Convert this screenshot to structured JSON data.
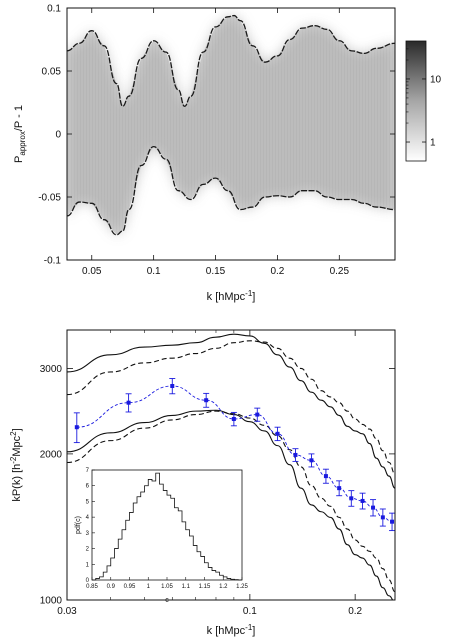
{
  "chart_data": [
    {
      "type": "heatmap",
      "xlabel": "k [hMpc",
      "xlabel_sup": "-1",
      "xlabel_end": "]",
      "ylabel": "P",
      "ylabel_sub": "approx",
      "ylabel_end": "/P - 1",
      "xlim": [
        0.03,
        0.295
      ],
      "ylim": [
        -0.1,
        0.1
      ],
      "xticks": [
        {
          "value": 0.05,
          "label": "0.05"
        },
        {
          "value": 0.1,
          "label": "0.1"
        },
        {
          "value": 0.15,
          "label": "0.15"
        },
        {
          "value": 0.2,
          "label": "0.2"
        },
        {
          "value": 0.25,
          "label": "0.25"
        }
      ],
      "yticks": [
        {
          "value": 0.1,
          "label": "0.1"
        },
        {
          "value": 0.05,
          "label": "0.05"
        },
        {
          "value": 0.0,
          "label": "0"
        },
        {
          "value": -0.05,
          "label": "-0.05"
        },
        {
          "value": -0.1,
          "label": "-0.1"
        }
      ],
      "colorbar": {
        "scale": "log",
        "range": [
          0.5,
          40
        ],
        "ticks": [
          {
            "value": 10,
            "label": "10"
          },
          {
            "value": 1,
            "label": "1"
          }
        ]
      },
      "series": [
        {
          "role": "upper-envelope",
          "x": [
            0.03,
            0.04,
            0.05,
            0.06,
            0.07,
            0.075,
            0.08,
            0.09,
            0.1,
            0.11,
            0.12,
            0.125,
            0.13,
            0.14,
            0.15,
            0.16,
            0.165,
            0.17,
            0.18,
            0.19,
            0.2,
            0.21,
            0.22,
            0.23,
            0.24,
            0.25,
            0.26,
            0.27,
            0.28,
            0.295
          ],
          "y": [
            0.066,
            0.072,
            0.082,
            0.07,
            0.04,
            0.022,
            0.03,
            0.06,
            0.074,
            0.065,
            0.035,
            0.022,
            0.03,
            0.065,
            0.085,
            0.093,
            0.094,
            0.09,
            0.07,
            0.057,
            0.062,
            0.075,
            0.084,
            0.086,
            0.083,
            0.074,
            0.066,
            0.064,
            0.068,
            0.072
          ]
        },
        {
          "role": "lower-envelope",
          "x": [
            0.03,
            0.04,
            0.05,
            0.06,
            0.07,
            0.075,
            0.08,
            0.09,
            0.1,
            0.11,
            0.12,
            0.13,
            0.14,
            0.15,
            0.16,
            0.17,
            0.18,
            0.19,
            0.2,
            0.21,
            0.22,
            0.23,
            0.24,
            0.25,
            0.26,
            0.27,
            0.28,
            0.295
          ],
          "y": [
            -0.065,
            -0.054,
            -0.055,
            -0.068,
            -0.08,
            -0.077,
            -0.06,
            -0.025,
            -0.01,
            -0.02,
            -0.045,
            -0.052,
            -0.04,
            -0.035,
            -0.045,
            -0.06,
            -0.058,
            -0.05,
            -0.049,
            -0.05,
            -0.045,
            -0.045,
            -0.05,
            -0.052,
            -0.052,
            -0.055,
            -0.058,
            -0.06
          ]
        }
      ]
    },
    {
      "type": "line",
      "xscale": "log",
      "yscale": "log",
      "xlabel": "k [hMpc",
      "xlabel_sup": "-1",
      "xlabel_end": "]",
      "ylabel": "kP(k) [h",
      "ylabel_sup": "-2",
      "ylabel_end": "Mpc",
      "ylabel_sup2": "2",
      "ylabel_close": "]",
      "xlim": [
        0.03,
        0.26
      ],
      "ylim": [
        1000,
        3600
      ],
      "xticks": [
        {
          "value": 0.03,
          "label": "0.03"
        },
        {
          "value": 0.1,
          "label": "0.1"
        },
        {
          "value": 0.2,
          "label": "0.2"
        }
      ],
      "yticks": [
        {
          "value": 3000,
          "label": "3000"
        },
        {
          "value": 2000,
          "label": "2000"
        },
        {
          "value": 1000,
          "label": "1000"
        }
      ],
      "series": [
        {
          "role": "measurement",
          "color": "#1a1adf",
          "x": [
            0.032,
            0.045,
            0.06,
            0.075,
            0.09,
            0.105,
            0.12,
            0.135,
            0.15,
            0.165,
            0.18,
            0.195,
            0.21,
            0.225,
            0.24,
            0.255
          ],
          "y": [
            2270,
            2550,
            2760,
            2580,
            2360,
            2410,
            2200,
            1990,
            1940,
            1800,
            1700,
            1620,
            1600,
            1550,
            1480,
            1450
          ],
          "err": [
            160,
            110,
            100,
            85,
            75,
            75,
            70,
            60,
            60,
            60,
            60,
            60,
            60,
            60,
            60,
            60
          ]
        },
        {
          "role": "solid-upper",
          "color": "#111111",
          "x": [
            0.03,
            0.04,
            0.05,
            0.06,
            0.07,
            0.08,
            0.09,
            0.1,
            0.11,
            0.12,
            0.13,
            0.14,
            0.15,
            0.16,
            0.17,
            0.18,
            0.19,
            0.2,
            0.21,
            0.22,
            0.23,
            0.24,
            0.25,
            0.26
          ],
          "y": [
            2950,
            3200,
            3320,
            3350,
            3390,
            3480,
            3530,
            3500,
            3380,
            3200,
            3020,
            2830,
            2680,
            2580,
            2500,
            2400,
            2280,
            2230,
            2200,
            2100,
            1960,
            1880,
            1800,
            1700
          ]
        },
        {
          "role": "dashed-upper",
          "color": "#111111",
          "x": [
            0.03,
            0.04,
            0.05,
            0.06,
            0.07,
            0.08,
            0.09,
            0.1,
            0.11,
            0.12,
            0.13,
            0.14,
            0.15,
            0.16,
            0.17,
            0.18,
            0.19,
            0.2,
            0.21,
            0.22,
            0.23,
            0.24,
            0.25,
            0.26
          ],
          "y": [
            2650,
            2950,
            3080,
            3150,
            3220,
            3300,
            3390,
            3420,
            3400,
            3300,
            3150,
            3000,
            2850,
            2700,
            2620,
            2550,
            2450,
            2360,
            2300,
            2250,
            2150,
            2030,
            1920,
            1820
          ]
        },
        {
          "role": "solid-lower",
          "color": "#111111",
          "x": [
            0.03,
            0.04,
            0.05,
            0.06,
            0.07,
            0.08,
            0.09,
            0.1,
            0.11,
            0.12,
            0.13,
            0.14,
            0.15,
            0.16,
            0.17,
            0.18,
            0.19,
            0.2,
            0.21,
            0.22,
            0.23,
            0.24,
            0.25,
            0.26
          ],
          "y": [
            2020,
            2210,
            2320,
            2400,
            2450,
            2460,
            2410,
            2330,
            2230,
            2080,
            1900,
            1700,
            1570,
            1520,
            1480,
            1400,
            1300,
            1240,
            1220,
            1180,
            1120,
            1060,
            1020,
            990
          ]
        },
        {
          "role": "dashed-lower",
          "color": "#111111",
          "x": [
            0.03,
            0.04,
            0.05,
            0.06,
            0.07,
            0.08,
            0.09,
            0.1,
            0.11,
            0.12,
            0.13,
            0.14,
            0.15,
            0.16,
            0.17,
            0.18,
            0.19,
            0.2,
            0.21,
            0.22,
            0.23,
            0.24,
            0.25,
            0.26
          ],
          "y": [
            1920,
            2130,
            2260,
            2350,
            2410,
            2450,
            2420,
            2370,
            2290,
            2180,
            2040,
            1880,
            1720,
            1620,
            1560,
            1480,
            1400,
            1330,
            1290,
            1260,
            1220,
            1160,
            1100,
            1040
          ]
        }
      ],
      "inset": {
        "type": "histogram",
        "xlabel": "c",
        "ylabel": "pdf(c)",
        "xlim": [
          0.85,
          1.25
        ],
        "ylim": [
          0,
          7
        ],
        "xticks": [
          {
            "value": 0.85,
            "label": "0.85"
          },
          {
            "value": 0.9,
            "label": "0.9"
          },
          {
            "value": 0.95,
            "label": "0.95"
          },
          {
            "value": 1.0,
            "label": "1"
          },
          {
            "value": 1.05,
            "label": "1.05"
          },
          {
            "value": 1.1,
            "label": "1.1"
          },
          {
            "value": 1.15,
            "label": "1.15"
          },
          {
            "value": 1.2,
            "label": "1.2"
          },
          {
            "value": 1.25,
            "label": "1.25"
          }
        ],
        "yticks": [
          {
            "value": 0,
            "label": "0"
          },
          {
            "value": 1,
            "label": "1"
          },
          {
            "value": 2,
            "label": "2"
          },
          {
            "value": 3,
            "label": "3"
          },
          {
            "value": 4,
            "label": "4"
          },
          {
            "value": 5,
            "label": "5"
          },
          {
            "value": 6,
            "label": "6"
          },
          {
            "value": 7,
            "label": "7"
          }
        ],
        "bin_start": 0.85,
        "bin_width": 0.01,
        "values": [
          0.0,
          0.1,
          0.2,
          0.5,
          0.9,
          1.4,
          2.0,
          2.6,
          3.2,
          3.8,
          4.3,
          4.9,
          5.3,
          5.6,
          6.0,
          6.4,
          6.3,
          6.8,
          6.1,
          5.7,
          5.4,
          5.2,
          4.6,
          4.4,
          3.7,
          3.2,
          2.8,
          2.2,
          1.8,
          1.5,
          1.1,
          0.8,
          0.6,
          0.5,
          0.3,
          0.2,
          0.1,
          0.05,
          0.02,
          0.0
        ]
      }
    }
  ]
}
